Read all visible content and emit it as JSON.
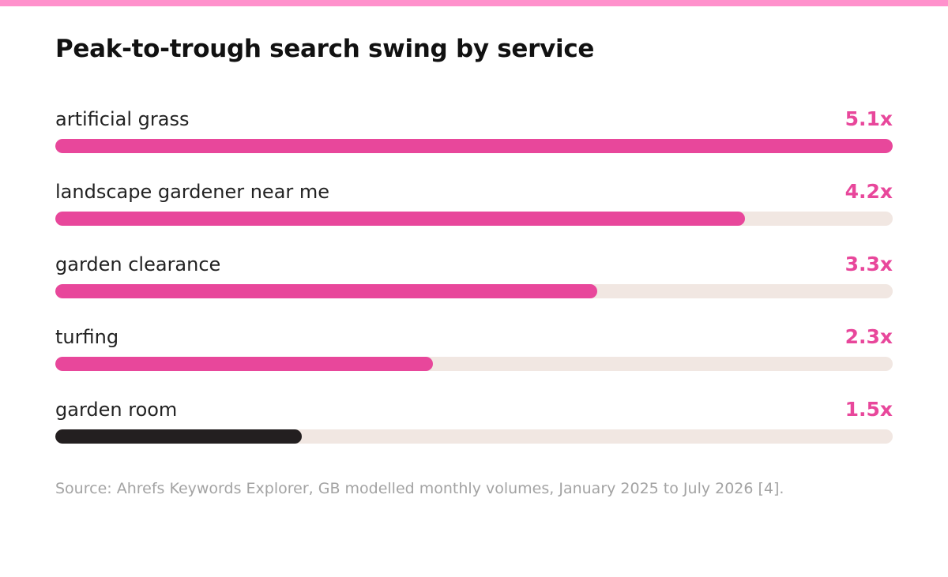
{
  "colors": {
    "accent": "#e8479b",
    "dark": "#231f20",
    "track": "#f1e7e2",
    "top_bar": "#ff91cc",
    "source_text": "#a3a3a3"
  },
  "chart_data": {
    "type": "bar",
    "orientation": "horizontal",
    "title": "Peak-to-trough search swing by service",
    "categories": [
      "artificial grass",
      "landscape gardener near me",
      "garden clearance",
      "turfing",
      "garden room"
    ],
    "values": [
      5.1,
      4.2,
      3.3,
      2.3,
      1.5
    ],
    "value_labels": [
      "5.1x",
      "4.2x",
      "3.3x",
      "2.3x",
      "1.5x"
    ],
    "bar_colors": [
      "#e8479b",
      "#e8479b",
      "#e8479b",
      "#e8479b",
      "#231f20"
    ],
    "label_colors": [
      "#e8479b",
      "#e8479b",
      "#e8479b",
      "#e8479b",
      "#e8479b"
    ],
    "xlim": [
      0,
      5.1
    ],
    "grid": false,
    "legend": "none"
  },
  "source": "Source: Ahrefs Keywords Explorer, GB modelled monthly volumes, January 2025 to July 2026 [4]."
}
